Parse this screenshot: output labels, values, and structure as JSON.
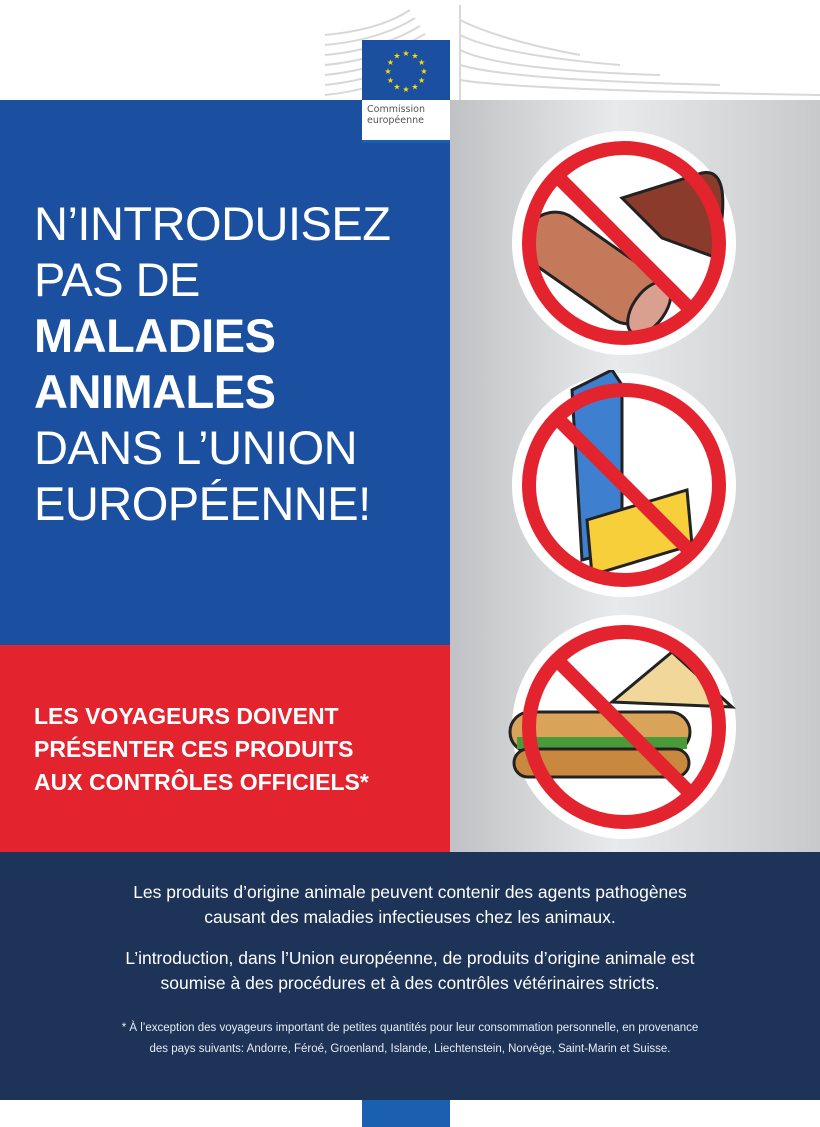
{
  "logo": {
    "line1": "Commission",
    "line2": "européenne",
    "colors": {
      "flag": "#1b4f9f",
      "stars": "#ffdd00"
    }
  },
  "headline": {
    "line1": "N’INTRODUISEZ",
    "line2": "PAS DE",
    "line3": "MALADIES",
    "line4": "ANIMALES",
    "line5": "DANS L’UNION",
    "line6": "EUROPÉENNE!"
  },
  "subhead": {
    "line1": "LES VOYAGEURS DOIVENT",
    "line2": "PRÉSENTER CES PRODUITS",
    "line3": "AUX CONTRÔLES OFFICIELS*"
  },
  "icons": [
    "no-meat-icon",
    "no-dairy-icon",
    "no-sandwich-icon"
  ],
  "body": {
    "p1_line1": "Les produits d’origine animale peuvent contenir des agents pathogènes",
    "p1_line2": "causant des maladies infectieuses chez les animaux.",
    "p2_line1": "L’introduction, dans l’Union européenne, de produits d’origine animale est",
    "p2_line2": "soumise à des procédures et à des contrôles vétérinaires stricts.",
    "note_line1": "* À l’exception des voyageurs important de petites quantités pour leur consommation personnelle, en provenance",
    "note_line2": "des pays suivants: Andorre, Féroé, Groenland, Islande, Liechtenstein, Norvège, Saint-Marin et Suisse."
  },
  "colors": {
    "blue": "#1b4f9f",
    "red": "#e3232e",
    "navy": "#1d3358"
  }
}
